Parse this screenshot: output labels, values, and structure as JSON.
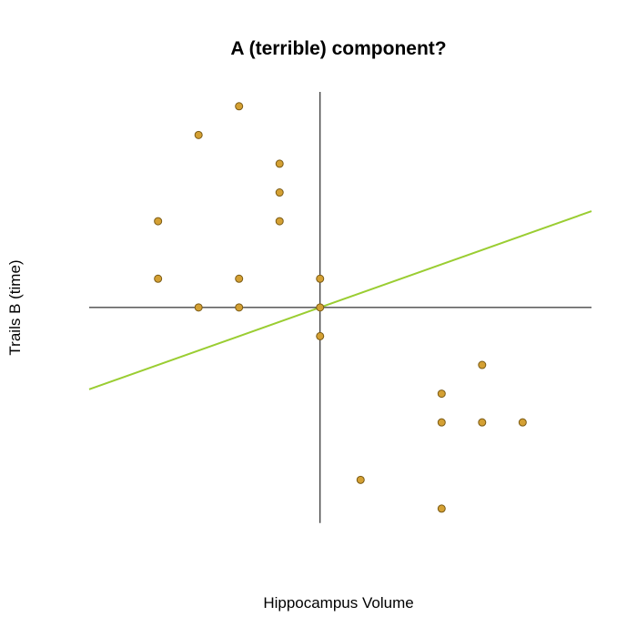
{
  "chart_data": {
    "type": "scatter",
    "title": "A (terrible) component?",
    "xlabel": "Hippocampus Volume",
    "ylabel": "Trails B (time)",
    "xlim": [
      -5.7,
      6.7
    ],
    "ylim": [
      -8,
      7.8
    ],
    "grid": false,
    "legend": "none",
    "colors": {
      "point_fill": "#d4a033",
      "point_stroke": "#7a5a14",
      "fit_line": "#9acd32",
      "axis_line": "#000000"
    },
    "axis_lines": {
      "x_at_y": 0,
      "y_at_x": 0
    },
    "x_segment": [
      -5.7,
      6.7
    ],
    "y_segment": [
      -7.5,
      7.5
    ],
    "points": [
      {
        "x": -2,
        "y": 7
      },
      {
        "x": -3,
        "y": 6
      },
      {
        "x": -1,
        "y": 5
      },
      {
        "x": -1,
        "y": 4
      },
      {
        "x": -4,
        "y": 3
      },
      {
        "x": -1,
        "y": 3
      },
      {
        "x": -4,
        "y": 1
      },
      {
        "x": -2,
        "y": 1
      },
      {
        "x": 0,
        "y": 1
      },
      {
        "x": -3,
        "y": 0
      },
      {
        "x": -2,
        "y": 0
      },
      {
        "x": 0,
        "y": 0
      },
      {
        "x": 0,
        "y": -1
      },
      {
        "x": 4,
        "y": -2
      },
      {
        "x": 3,
        "y": -3
      },
      {
        "x": 3,
        "y": -4
      },
      {
        "x": 4,
        "y": -4
      },
      {
        "x": 5,
        "y": -4
      },
      {
        "x": 1,
        "y": -6
      },
      {
        "x": 3,
        "y": -7
      }
    ],
    "fit_line": {
      "intercept": 0,
      "slope": 0.5
    }
  }
}
